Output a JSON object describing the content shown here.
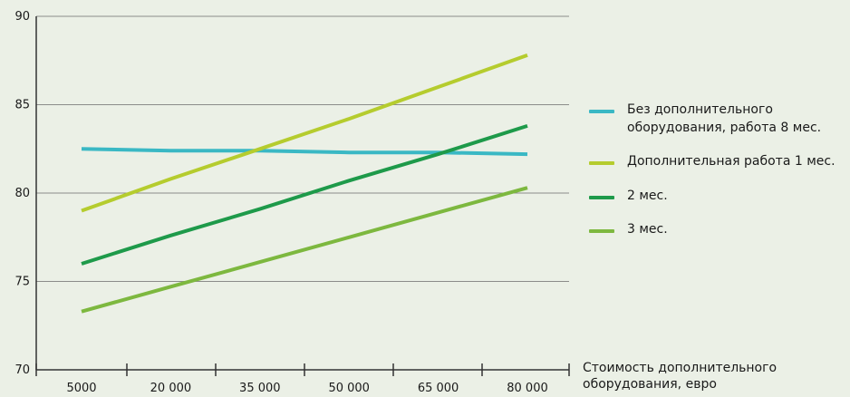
{
  "chart_data": {
    "type": "line",
    "x": [
      "5000",
      "20 000",
      "35 000",
      "50 000",
      "65 000",
      "80 000"
    ],
    "ylim": [
      70,
      90
    ],
    "yticks": [
      70,
      75,
      80,
      85,
      90
    ],
    "xlabel": "Стоимость дополнительного оборудования, евро",
    "xlabel_lines": [
      "Стоимость дополнительного",
      "оборудования, евро"
    ],
    "grid": "horizontal",
    "legend_position": "right",
    "series": [
      {
        "name": "Без дополнительного оборудования, работа 8 мес.",
        "name_lines": [
          "Без дополнительного",
          "оборудования, работа 8 мес."
        ],
        "color": "#3ab8c4",
        "values": [
          82.5,
          82.4,
          82.4,
          82.3,
          82.3,
          82.2
        ]
      },
      {
        "name": "Дополнительная работа 1 мес.",
        "name_lines": [
          "Дополнительная работа 1 мес."
        ],
        "color": "#b5cc2e",
        "values": [
          79.0,
          80.8,
          82.5,
          84.2,
          86.0,
          87.8
        ]
      },
      {
        "name": "2 мес.",
        "name_lines": [
          "2 мес."
        ],
        "color": "#1e9a4a",
        "values": [
          76.0,
          77.6,
          79.1,
          80.7,
          82.2,
          83.8
        ]
      },
      {
        "name": "3 мес.",
        "name_lines": [
          "3 мес."
        ],
        "color": "#7db83f",
        "values": [
          73.3,
          74.7,
          76.1,
          77.5,
          78.9,
          80.3
        ]
      }
    ]
  }
}
